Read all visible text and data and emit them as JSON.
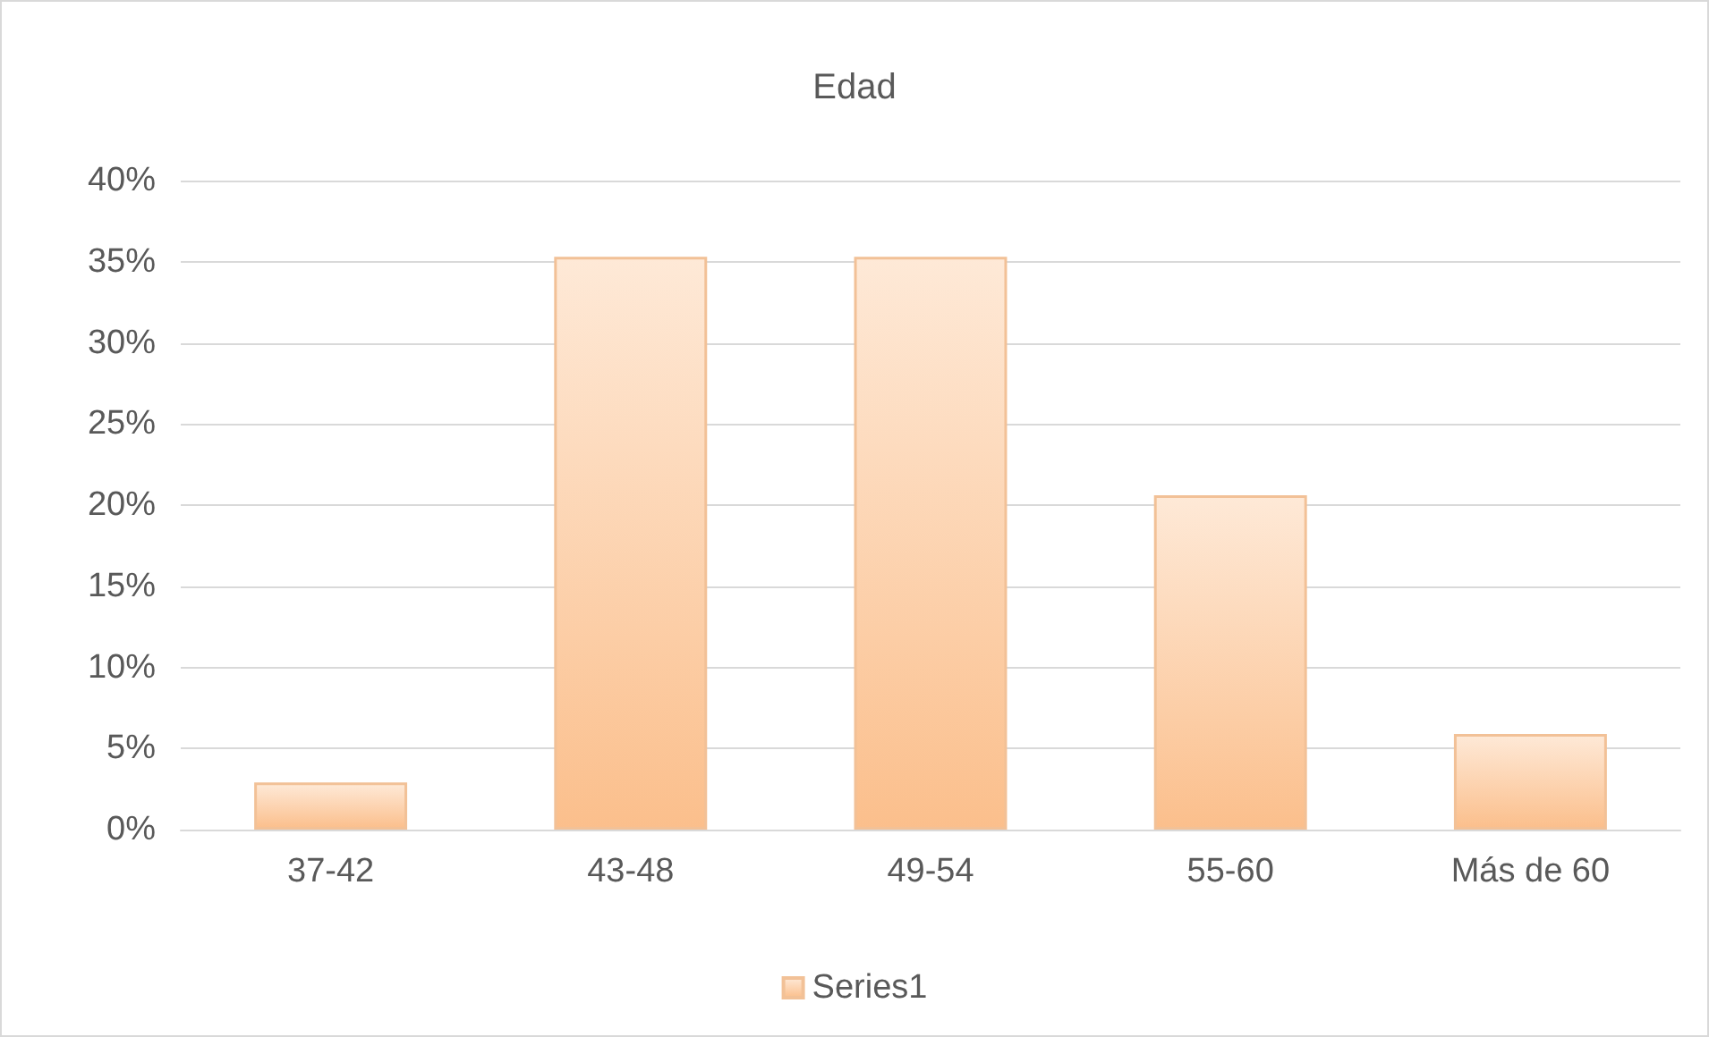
{
  "chart_data": {
    "type": "bar",
    "title": "Edad",
    "categories": [
      "37-42",
      "43-48",
      "49-54",
      "55-60",
      "Más de 60"
    ],
    "series": [
      {
        "name": "Series1",
        "color": "#fbbf8c",
        "values": [
          2.9,
          35.3,
          35.3,
          20.6,
          5.9
        ]
      }
    ],
    "ylim": [
      0,
      40
    ],
    "yticks": [
      {
        "value": 0,
        "label": "0%"
      },
      {
        "value": 5,
        "label": "5%"
      },
      {
        "value": 10,
        "label": "10%"
      },
      {
        "value": 15,
        "label": "15%"
      },
      {
        "value": 20,
        "label": "20%"
      },
      {
        "value": 25,
        "label": "25%"
      },
      {
        "value": 30,
        "label": "30%"
      },
      {
        "value": 35,
        "label": "35%"
      },
      {
        "value": 40,
        "label": "40%"
      }
    ],
    "grid": "y",
    "legend": "bottom"
  }
}
